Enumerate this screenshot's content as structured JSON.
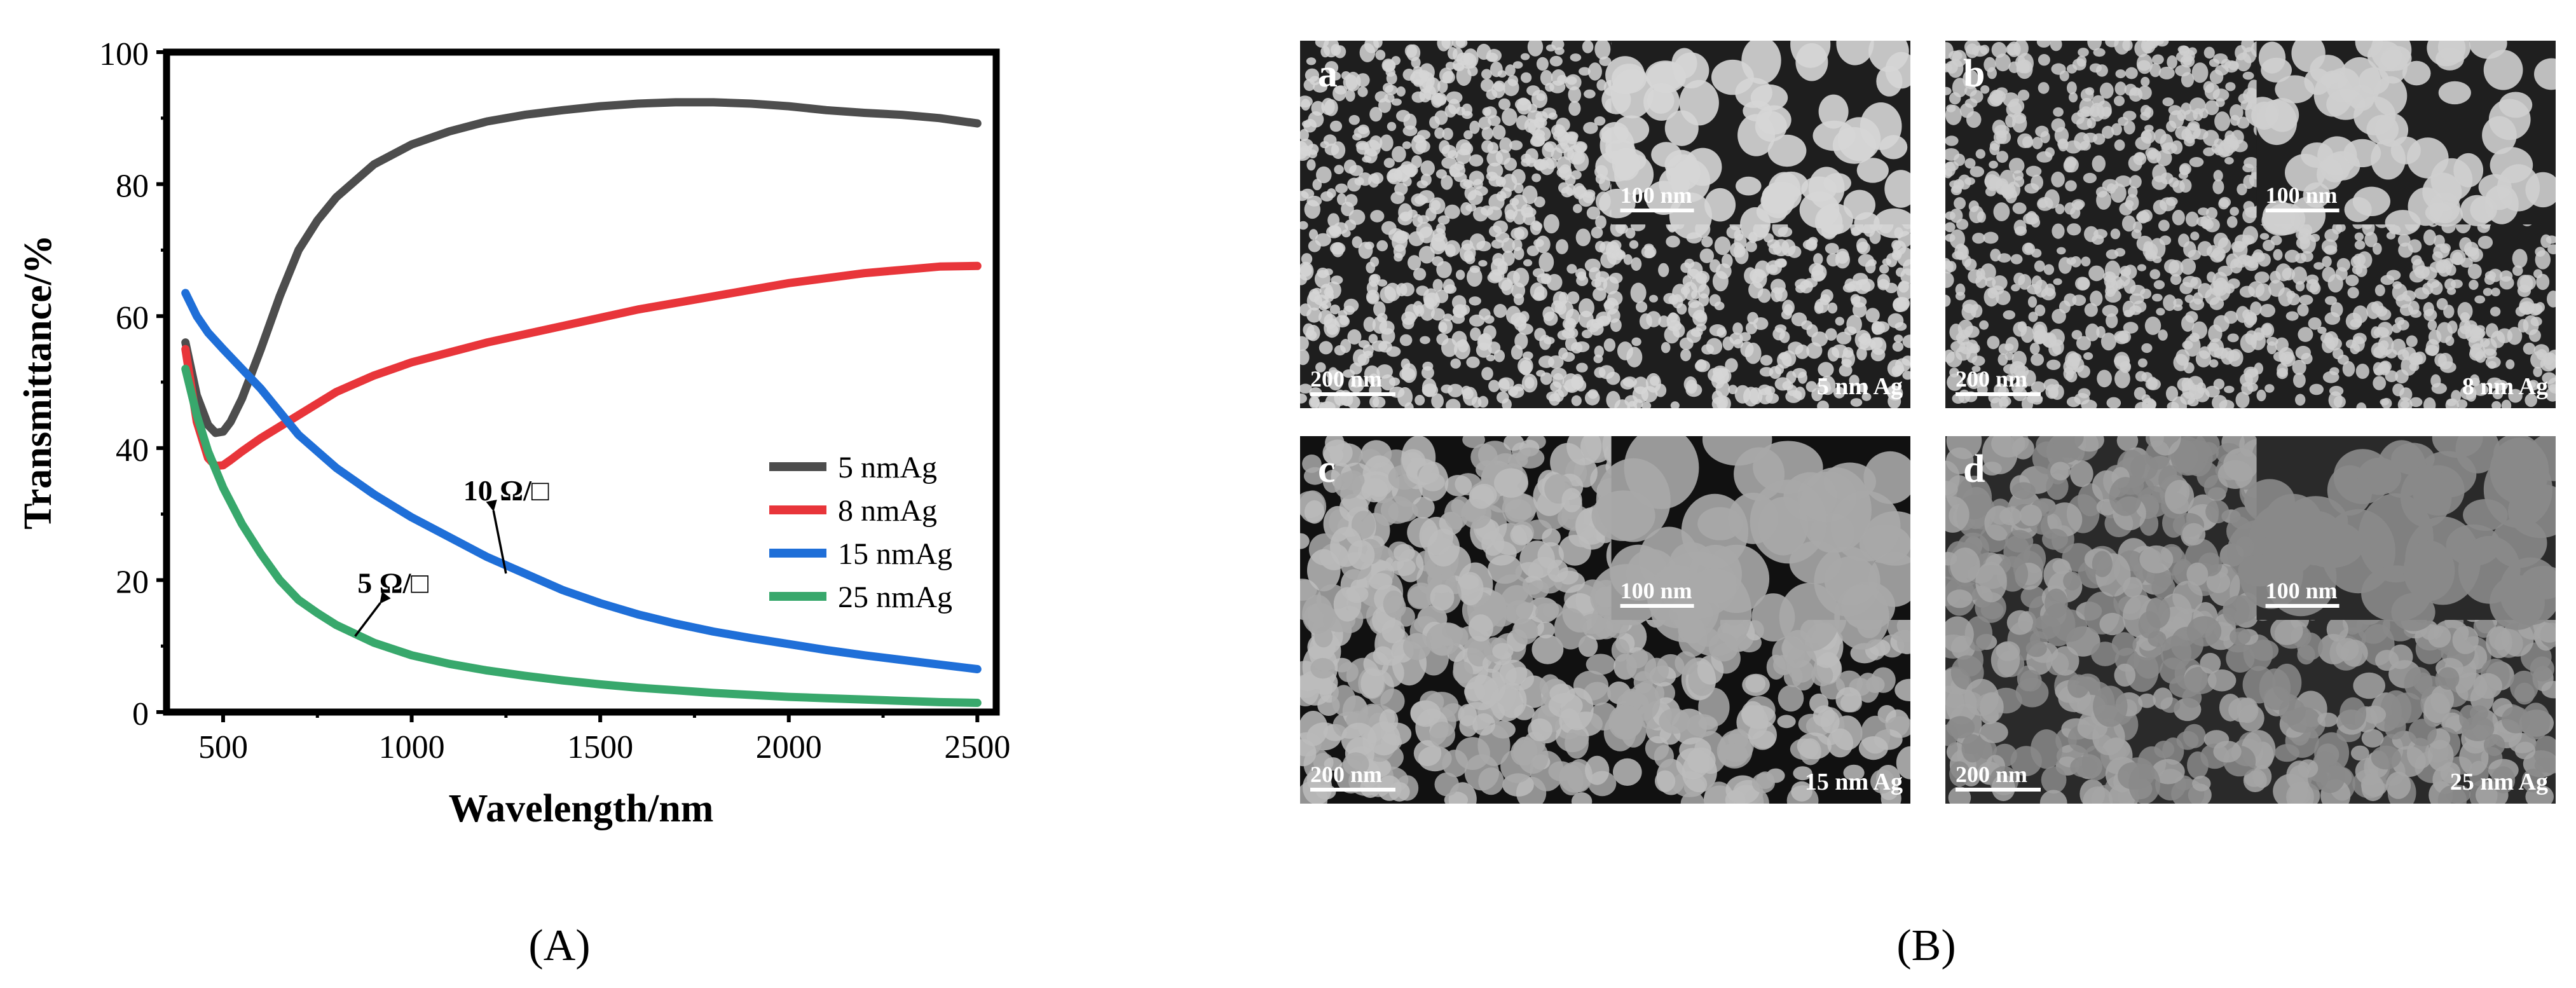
{
  "figure": {
    "panel_a_label": "(A)",
    "panel_b_label": "(B)"
  },
  "chart_data": {
    "type": "line",
    "title": "",
    "xlabel": "Wavelength/nm",
    "ylabel": "Transmittance/%",
    "xlim": [
      350,
      2550
    ],
    "ylim": [
      0,
      100
    ],
    "xticks": [
      500,
      1000,
      1500,
      2000,
      2500
    ],
    "yticks": [
      0,
      20,
      40,
      60,
      80,
      100
    ],
    "grid": false,
    "legend_position": "center-right",
    "series": [
      {
        "name": "5 nmAg",
        "color": "#4d4d4d",
        "x": [
          400,
          430,
          460,
          480,
          500,
          520,
          550,
          600,
          650,
          700,
          750,
          800,
          900,
          1000,
          1100,
          1200,
          1300,
          1400,
          1500,
          1600,
          1700,
          1800,
          1900,
          2000,
          2100,
          2200,
          2300,
          2400,
          2500
        ],
        "y": [
          56,
          48,
          43.5,
          42.3,
          42.5,
          44,
          47.5,
          55,
          63,
          70,
          74.5,
          78,
          83,
          86,
          88,
          89.5,
          90.5,
          91.2,
          91.8,
          92.2,
          92.4,
          92.4,
          92.2,
          91.8,
          91.2,
          90.8,
          90.5,
          90,
          89.2
        ]
      },
      {
        "name": "8 nmAg",
        "color": "#e8353a",
        "x": [
          400,
          430,
          460,
          480,
          500,
          520,
          550,
          600,
          700,
          800,
          900,
          1000,
          1200,
          1400,
          1600,
          1800,
          2000,
          2200,
          2400,
          2500
        ],
        "y": [
          55,
          44,
          38.5,
          37.3,
          37.4,
          38.2,
          39.5,
          41.5,
          45,
          48.5,
          51,
          53,
          56,
          58.5,
          61,
          63,
          65,
          66.5,
          67.5,
          67.6
        ]
      },
      {
        "name": "15 nmAg",
        "color": "#1f6fd8",
        "x": [
          400,
          430,
          460,
          500,
          550,
          600,
          700,
          800,
          900,
          1000,
          1100,
          1200,
          1300,
          1400,
          1500,
          1600,
          1700,
          1800,
          1900,
          2000,
          2100,
          2200,
          2300,
          2400,
          2500
        ],
        "y": [
          63.5,
          60,
          57.5,
          55,
          52,
          49,
          42,
          37,
          33,
          29.5,
          26.5,
          23.5,
          21,
          18.5,
          16.5,
          14.8,
          13.4,
          12.2,
          11.2,
          10.3,
          9.4,
          8.6,
          7.9,
          7.2,
          6.5
        ]
      },
      {
        "name": "25 nmAg",
        "color": "#38a86c",
        "x": [
          400,
          430,
          460,
          500,
          550,
          600,
          650,
          700,
          750,
          800,
          900,
          1000,
          1100,
          1200,
          1300,
          1400,
          1500,
          1600,
          1700,
          1800,
          1900,
          2000,
          2100,
          2200,
          2300,
          2400,
          2500
        ],
        "y": [
          52,
          45,
          39.5,
          34,
          28.5,
          24,
          20,
          17,
          15,
          13.2,
          10.5,
          8.6,
          7.3,
          6.3,
          5.5,
          4.8,
          4.2,
          3.7,
          3.3,
          2.9,
          2.6,
          2.3,
          2.1,
          1.9,
          1.7,
          1.5,
          1.4
        ]
      }
    ],
    "annotations": [
      {
        "text": "10 Ω/□",
        "at_x": 1250,
        "at_y": 21,
        "text_x": 1200,
        "text_y": 31.5
      },
      {
        "text": "5 Ω/□",
        "at_x": 850,
        "at_y": 11.5,
        "text_x": 900,
        "text_y": 17.5
      }
    ]
  },
  "sem_panels": [
    {
      "letter": "a",
      "label": "5 nm Ag",
      "scale_main": "200 nm",
      "scale_inset": "100 nm",
      "bg": "#7a7a7a",
      "grain": "#d6d6d6",
      "dark": "#1e1e1e"
    },
    {
      "letter": "b",
      "label": "8 nm Ag",
      "scale_main": "200 nm",
      "scale_inset": "100 nm",
      "bg": "#6d6d6d",
      "grain": "#cfcfcf",
      "dark": "#1f1f1f"
    },
    {
      "letter": "c",
      "label": "15 nm Ag",
      "scale_main": "200 nm",
      "scale_inset": "100 nm",
      "bg": "#a9a9a9",
      "grain": "#bcbcbc",
      "dark": "#111111"
    },
    {
      "letter": "d",
      "label": "25 nm Ag",
      "scale_main": "200 nm",
      "scale_inset": "100 nm",
      "bg": "#8a8a8a",
      "grain": "#a6a6a6",
      "dark": "#2a2a2a"
    }
  ]
}
